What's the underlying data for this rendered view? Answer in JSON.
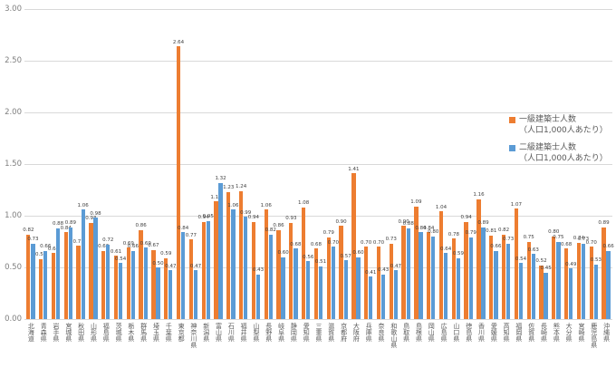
{
  "chart_data": {
    "type": "bar",
    "title": "",
    "xlabel": "",
    "ylabel": "",
    "ylim": [
      0,
      3
    ],
    "ytick_labels": [
      "3.00",
      "2.50",
      "2.00",
      "1.50",
      "1.00",
      "0.50",
      "0.00"
    ],
    "ytick_values": [
      3.0,
      2.5,
      2.0,
      1.5,
      1.0,
      0.5,
      0.0
    ],
    "grid": true,
    "value_labels": true,
    "legend_position": "right-middle",
    "categories": [
      "北海道",
      "青森県",
      "岩手県",
      "宮城県",
      "秋田県",
      "山形県",
      "福島県",
      "茨城県",
      "栃木県",
      "群馬県",
      "埼玉県",
      "千葉県",
      "東京都",
      "神奈川県",
      "新潟県",
      "富山県",
      "石川県",
      "福井県",
      "山梨県",
      "長野県",
      "岐阜県",
      "静岡県",
      "愛知県",
      "三重県",
      "滋賀県",
      "京都府",
      "大阪府",
      "兵庫県",
      "奈良県",
      "和歌山県",
      "鳥取県",
      "島根県",
      "岡山県",
      "広島県",
      "山口県",
      "徳島県",
      "香川県",
      "愛媛県",
      "高知県",
      "福岡県",
      "佐賀県",
      "長崎県",
      "熊本県",
      "大分県",
      "宮崎県",
      "鹿児島県",
      "沖縄県"
    ],
    "series": [
      {
        "name": "一級建築士人数",
        "name_suffix": "（人口1,000人あたり）",
        "color": "#ED7D31",
        "values": [
          0.82,
          0.58,
          0.64,
          0.84,
          0.71,
          0.93,
          0.66,
          0.61,
          0.69,
          0.86,
          0.67,
          0.59,
          2.64,
          0.77,
          0.94,
          1.14,
          1.23,
          1.24,
          0.94,
          1.06,
          0.86,
          0.93,
          1.08,
          0.68,
          0.79,
          0.9,
          1.41,
          0.7,
          0.7,
          0.73,
          0.9,
          1.09,
          0.84,
          1.04,
          0.78,
          0.94,
          1.16,
          0.81,
          0.82,
          1.07,
          0.75,
          0.52,
          0.8,
          0.68,
          0.74,
          0.7,
          0.89
        ]
      },
      {
        "name": "二級建築士人数",
        "name_suffix": "（人口1,000人あたり）",
        "color": "#5B9BD5",
        "values": [
          0.73,
          0.66,
          0.88,
          0.89,
          1.06,
          0.98,
          0.72,
          0.54,
          0.66,
          0.69,
          0.5,
          0.47,
          0.84,
          0.47,
          0.95,
          1.32,
          1.06,
          0.99,
          0.43,
          0.82,
          0.6,
          0.68,
          0.56,
          0.51,
          0.7,
          0.57,
          0.6,
          0.41,
          0.43,
          0.47,
          0.88,
          0.84,
          0.8,
          0.64,
          0.59,
          0.79,
          0.89,
          0.66,
          0.73,
          0.54,
          0.63,
          0.45,
          0.75,
          0.49,
          0.73,
          0.53,
          0.66
        ]
      }
    ]
  },
  "colors": {
    "background": "#ffffff",
    "gridline": "#d9d9d9",
    "axis_text": "#7f7f7f",
    "category_text": "#595959",
    "value_label_text": "#404040",
    "series1": "#ED7D31",
    "series2": "#5B9BD5"
  }
}
